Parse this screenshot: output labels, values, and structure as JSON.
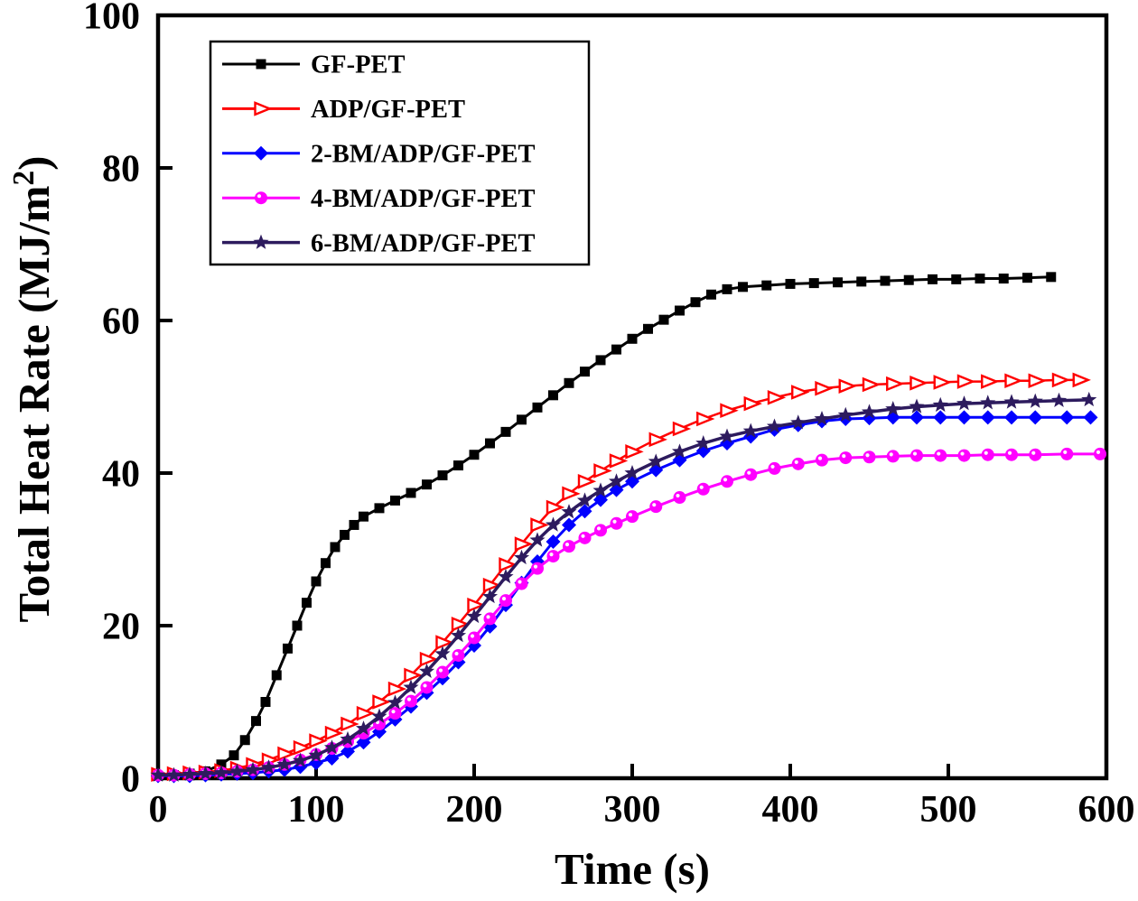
{
  "chart_data": {
    "type": "line",
    "title": "",
    "xlabel": "Time (s)",
    "ylabel": "Total Heat Rate (MJ/m²)",
    "xlim": [
      0,
      600
    ],
    "ylim": [
      0,
      100
    ],
    "xticks": [
      0,
      100,
      200,
      300,
      400,
      500,
      600
    ],
    "yticks": [
      0,
      20,
      40,
      60,
      80,
      100
    ],
    "grid": false,
    "legend_position": "top-left",
    "axis_color": "#000000",
    "background": "#ffffff",
    "series": [
      {
        "name": "GF-PET",
        "color": "#000000",
        "marker": "square",
        "line_width": 3,
        "points": [
          [
            0,
            0.3
          ],
          [
            10,
            0.4
          ],
          [
            20,
            0.6
          ],
          [
            30,
            0.9
          ],
          [
            40,
            1.8
          ],
          [
            48,
            3
          ],
          [
            55,
            5
          ],
          [
            62,
            7.5
          ],
          [
            68,
            10
          ],
          [
            75,
            13.5
          ],
          [
            82,
            17
          ],
          [
            88,
            20
          ],
          [
            94,
            23
          ],
          [
            100,
            25.8
          ],
          [
            106,
            28.2
          ],
          [
            112,
            30.3
          ],
          [
            118,
            31.9
          ],
          [
            124,
            33.2
          ],
          [
            130,
            34.3
          ],
          [
            140,
            35.4
          ],
          [
            150,
            36.4
          ],
          [
            160,
            37.4
          ],
          [
            170,
            38.5
          ],
          [
            180,
            39.7
          ],
          [
            190,
            41
          ],
          [
            200,
            42.4
          ],
          [
            210,
            43.9
          ],
          [
            220,
            45.4
          ],
          [
            230,
            47
          ],
          [
            240,
            48.6
          ],
          [
            250,
            50.2
          ],
          [
            260,
            51.8
          ],
          [
            270,
            53.3
          ],
          [
            280,
            54.8
          ],
          [
            290,
            56.2
          ],
          [
            300,
            57.6
          ],
          [
            310,
            58.9
          ],
          [
            320,
            60.1
          ],
          [
            330,
            61.3
          ],
          [
            340,
            62.4
          ],
          [
            350,
            63.4
          ],
          [
            360,
            64.1
          ],
          [
            370,
            64.4
          ],
          [
            385,
            64.6
          ],
          [
            400,
            64.8
          ],
          [
            415,
            64.9
          ],
          [
            430,
            65
          ],
          [
            445,
            65.1
          ],
          [
            460,
            65.2
          ],
          [
            475,
            65.3
          ],
          [
            490,
            65.4
          ],
          [
            505,
            65.4
          ],
          [
            520,
            65.5
          ],
          [
            535,
            65.5
          ],
          [
            550,
            65.6
          ],
          [
            565,
            65.7
          ]
        ]
      },
      {
        "name": "ADP/GF-PET",
        "color": "#ff0000",
        "marker": "triangle-right-open",
        "line_width": 2.5,
        "points": [
          [
            0,
            0.5
          ],
          [
            10,
            0.6
          ],
          [
            20,
            0.7
          ],
          [
            30,
            0.8
          ],
          [
            40,
            1
          ],
          [
            50,
            1.3
          ],
          [
            60,
            1.8
          ],
          [
            70,
            2.4
          ],
          [
            80,
            3.2
          ],
          [
            90,
            4
          ],
          [
            100,
            4.9
          ],
          [
            110,
            5.9
          ],
          [
            120,
            7.1
          ],
          [
            130,
            8.5
          ],
          [
            140,
            10
          ],
          [
            150,
            11.7
          ],
          [
            160,
            13.5
          ],
          [
            170,
            15.6
          ],
          [
            180,
            17.8
          ],
          [
            190,
            20.2
          ],
          [
            200,
            22.7
          ],
          [
            210,
            25.3
          ],
          [
            220,
            28
          ],
          [
            230,
            30.7
          ],
          [
            240,
            33.2
          ],
          [
            250,
            35.5
          ],
          [
            260,
            37.3
          ],
          [
            270,
            38.9
          ],
          [
            280,
            40.3
          ],
          [
            290,
            41.6
          ],
          [
            300,
            42.8
          ],
          [
            315,
            44.4
          ],
          [
            330,
            45.8
          ],
          [
            345,
            47.1
          ],
          [
            360,
            48.2
          ],
          [
            375,
            49.1
          ],
          [
            390,
            49.9
          ],
          [
            405,
            50.6
          ],
          [
            420,
            51.1
          ],
          [
            435,
            51.4
          ],
          [
            450,
            51.6
          ],
          [
            465,
            51.7
          ],
          [
            480,
            51.8
          ],
          [
            495,
            51.9
          ],
          [
            510,
            52
          ],
          [
            525,
            52
          ],
          [
            540,
            52.1
          ],
          [
            555,
            52.1
          ],
          [
            570,
            52.2
          ],
          [
            583,
            52.2
          ]
        ]
      },
      {
        "name": "2-BM/ADP/GF-PET",
        "color": "#0000ff",
        "marker": "diamond",
        "line_width": 3,
        "points": [
          [
            0,
            0.3
          ],
          [
            10,
            0.3
          ],
          [
            20,
            0.3
          ],
          [
            30,
            0.4
          ],
          [
            40,
            0.5
          ],
          [
            50,
            0.6
          ],
          [
            60,
            0.7
          ],
          [
            70,
            0.9
          ],
          [
            80,
            1.1
          ],
          [
            90,
            1.5
          ],
          [
            100,
            2
          ],
          [
            110,
            2.6
          ],
          [
            120,
            3.5
          ],
          [
            130,
            4.7
          ],
          [
            140,
            6.1
          ],
          [
            150,
            7.7
          ],
          [
            160,
            9.4
          ],
          [
            170,
            11.2
          ],
          [
            180,
            13.1
          ],
          [
            190,
            15.2
          ],
          [
            200,
            17.4
          ],
          [
            210,
            19.9
          ],
          [
            220,
            22.7
          ],
          [
            230,
            25.6
          ],
          [
            240,
            28.4
          ],
          [
            250,
            31
          ],
          [
            260,
            33.2
          ],
          [
            270,
            35
          ],
          [
            280,
            36.5
          ],
          [
            290,
            37.8
          ],
          [
            300,
            38.9
          ],
          [
            315,
            40.4
          ],
          [
            330,
            41.7
          ],
          [
            345,
            42.9
          ],
          [
            360,
            43.9
          ],
          [
            375,
            44.8
          ],
          [
            390,
            45.7
          ],
          [
            405,
            46.3
          ],
          [
            420,
            46.8
          ],
          [
            435,
            47.1
          ],
          [
            450,
            47.2
          ],
          [
            465,
            47.3
          ],
          [
            480,
            47.3
          ],
          [
            495,
            47.3
          ],
          [
            510,
            47.3
          ],
          [
            525,
            47.3
          ],
          [
            540,
            47.3
          ],
          [
            555,
            47.3
          ],
          [
            575,
            47.3
          ],
          [
            590,
            47.3
          ]
        ]
      },
      {
        "name": "4-BM/ADP/GF-PET",
        "color": "#ff00ff",
        "marker": "circle",
        "line_width": 3,
        "points": [
          [
            0,
            0.4
          ],
          [
            10,
            0.4
          ],
          [
            20,
            0.5
          ],
          [
            30,
            0.6
          ],
          [
            40,
            0.7
          ],
          [
            50,
            0.9
          ],
          [
            60,
            1.1
          ],
          [
            70,
            1.4
          ],
          [
            80,
            1.8
          ],
          [
            90,
            2.4
          ],
          [
            100,
            3.1
          ],
          [
            110,
            3.9
          ],
          [
            120,
            4.8
          ],
          [
            130,
            5.9
          ],
          [
            140,
            7.1
          ],
          [
            150,
            8.5
          ],
          [
            160,
            10.1
          ],
          [
            170,
            11.9
          ],
          [
            180,
            13.9
          ],
          [
            190,
            16.1
          ],
          [
            200,
            18.4
          ],
          [
            210,
            20.9
          ],
          [
            220,
            23.3
          ],
          [
            230,
            25.5
          ],
          [
            240,
            27.5
          ],
          [
            250,
            29.1
          ],
          [
            260,
            30.4
          ],
          [
            270,
            31.5
          ],
          [
            280,
            32.5
          ],
          [
            290,
            33.4
          ],
          [
            300,
            34.3
          ],
          [
            315,
            35.6
          ],
          [
            330,
            36.8
          ],
          [
            345,
            37.9
          ],
          [
            360,
            38.9
          ],
          [
            375,
            39.8
          ],
          [
            390,
            40.6
          ],
          [
            405,
            41.2
          ],
          [
            420,
            41.7
          ],
          [
            435,
            42
          ],
          [
            450,
            42.1
          ],
          [
            465,
            42.2
          ],
          [
            480,
            42.3
          ],
          [
            495,
            42.3
          ],
          [
            510,
            42.3
          ],
          [
            525,
            42.4
          ],
          [
            540,
            42.4
          ],
          [
            555,
            42.4
          ],
          [
            575,
            42.5
          ],
          [
            596,
            42.5
          ]
        ]
      },
      {
        "name": "6-BM/ADP/GF-PET",
        "color": "#2d1b5e",
        "marker": "star",
        "line_width": 3.5,
        "points": [
          [
            0,
            0.4
          ],
          [
            10,
            0.4
          ],
          [
            20,
            0.5
          ],
          [
            30,
            0.6
          ],
          [
            40,
            0.7
          ],
          [
            50,
            0.9
          ],
          [
            60,
            1.1
          ],
          [
            70,
            1.4
          ],
          [
            80,
            1.8
          ],
          [
            90,
            2.3
          ],
          [
            100,
            3
          ],
          [
            110,
            4
          ],
          [
            120,
            5.1
          ],
          [
            130,
            6.5
          ],
          [
            140,
            8.1
          ],
          [
            150,
            9.9
          ],
          [
            160,
            11.9
          ],
          [
            170,
            14
          ],
          [
            180,
            16.3
          ],
          [
            190,
            18.7
          ],
          [
            200,
            21.2
          ],
          [
            210,
            23.8
          ],
          [
            220,
            26.4
          ],
          [
            230,
            28.9
          ],
          [
            240,
            31.2
          ],
          [
            250,
            33.2
          ],
          [
            260,
            34.9
          ],
          [
            270,
            36.4
          ],
          [
            280,
            37.7
          ],
          [
            290,
            38.9
          ],
          [
            300,
            40
          ],
          [
            315,
            41.5
          ],
          [
            330,
            42.8
          ],
          [
            345,
            43.9
          ],
          [
            360,
            44.8
          ],
          [
            375,
            45.5
          ],
          [
            390,
            46.1
          ],
          [
            405,
            46.6
          ],
          [
            420,
            47.1
          ],
          [
            435,
            47.6
          ],
          [
            450,
            48
          ],
          [
            465,
            48.4
          ],
          [
            480,
            48.7
          ],
          [
            495,
            48.9
          ],
          [
            510,
            49.1
          ],
          [
            525,
            49.2
          ],
          [
            540,
            49.3
          ],
          [
            555,
            49.4
          ],
          [
            570,
            49.5
          ],
          [
            589,
            49.6
          ]
        ]
      }
    ]
  }
}
